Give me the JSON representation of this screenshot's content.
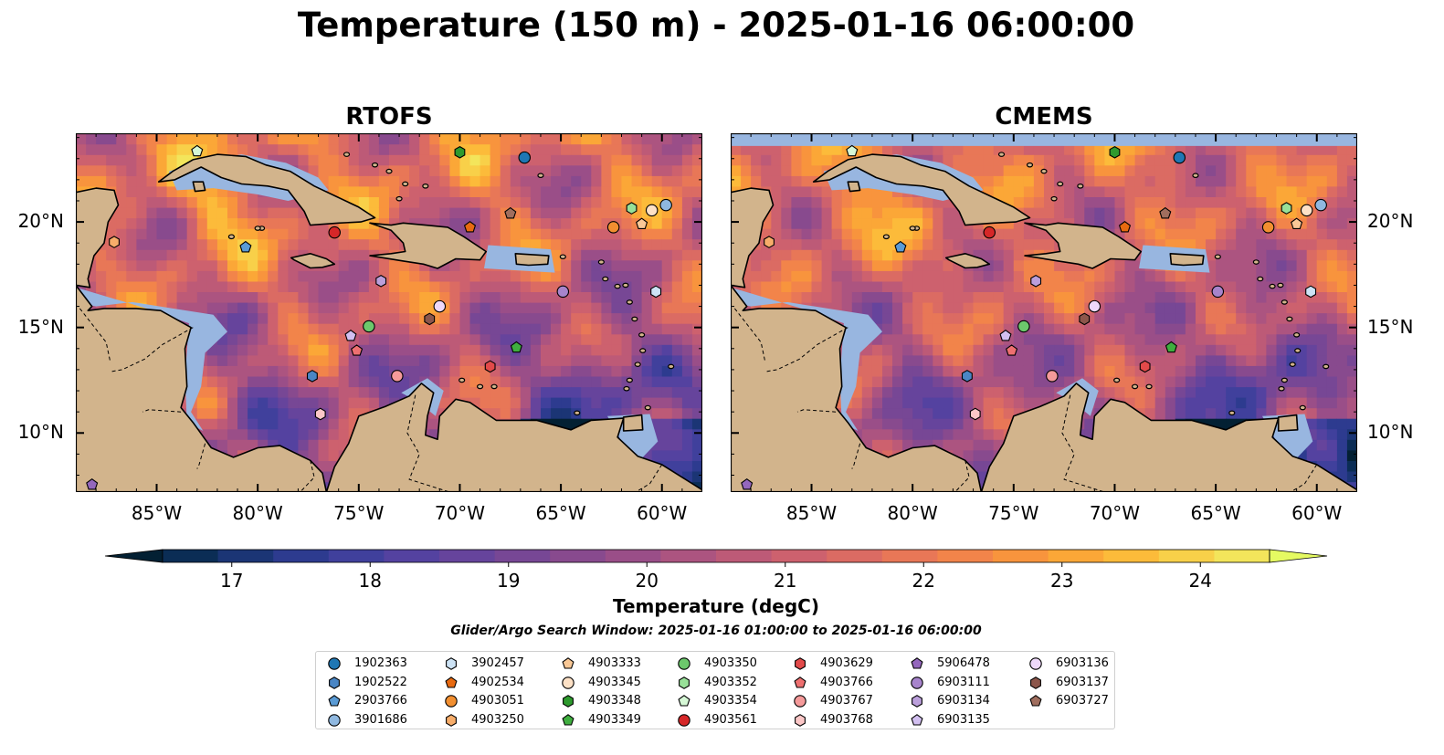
{
  "title": "Temperature (150 m) - 2025-01-16 06:00:00",
  "panels": [
    {
      "name": "RTOFS"
    },
    {
      "name": "CMEMS"
    }
  ],
  "map": {
    "lon_range": [
      -89,
      -58
    ],
    "lat_range": [
      7.2,
      24.2
    ],
    "lon_ticks": [
      "85°W",
      "80°W",
      "75°W",
      "70°W",
      "65°W",
      "60°W"
    ],
    "lat_ticks": [
      "20°N",
      "15°N",
      "10°N"
    ],
    "colors": {
      "land": "#d2b48c",
      "shelf": "#98b6e0",
      "deep": "#04253a"
    }
  },
  "colorbar": {
    "label": "Temperature (degC)",
    "ticks": [
      "17",
      "18",
      "19",
      "20",
      "21",
      "22",
      "23",
      "24"
    ],
    "range": [
      16.5,
      24.5
    ],
    "colors": [
      "#0b2d55",
      "#1b3575",
      "#2d3b8f",
      "#40409c",
      "#5442a0",
      "#66449c",
      "#774795",
      "#884a8e",
      "#9a4e88",
      "#ac5480",
      "#bd5a77",
      "#cd616e",
      "#db6b63",
      "#e87757",
      "#f2844a",
      "#f8943d",
      "#fba737",
      "#fcbb3a",
      "#f8d049",
      "#f3e55b"
    ],
    "under_color": "#032033",
    "over_color": "#e5fa62"
  },
  "search_window": "Glider/Argo Search Window: 2025-01-16 01:00:00 to 2025-01-16 06:00:00",
  "floats": [
    {
      "id": "1902363",
      "marker": "circle",
      "color": "#1f77b4",
      "lon": -66.8,
      "lat": 23.05
    },
    {
      "id": "1902522",
      "marker": "hexagon",
      "color": "#4a86c5",
      "lon": -77.3,
      "lat": 12.7
    },
    {
      "id": "2903766",
      "marker": "pentagon",
      "color": "#5a9bd5",
      "lon": -80.6,
      "lat": 18.8
    },
    {
      "id": "3901686",
      "marker": "circle",
      "color": "#8fb8e0",
      "lon": -59.8,
      "lat": 20.8
    },
    {
      "id": "3902457",
      "marker": "hexagon",
      "color": "#cde3f5",
      "lon": -60.3,
      "lat": 16.7
    },
    {
      "id": "4902534",
      "marker": "pentagon",
      "color": "#e86a10",
      "lon": -69.5,
      "lat": 19.75
    },
    {
      "id": "4903051",
      "marker": "circle",
      "color": "#f28f30",
      "lon": -62.4,
      "lat": 19.75
    },
    {
      "id": "4903250",
      "marker": "hexagon",
      "color": "#f7ad6a",
      "lon": -87.1,
      "lat": 19.05
    },
    {
      "id": "4903333",
      "marker": "pentagon",
      "color": "#f9c896",
      "lon": -61.0,
      "lat": 19.9
    },
    {
      "id": "4903345",
      "marker": "circle",
      "color": "#fde1c6",
      "lon": -60.5,
      "lat": 20.55
    },
    {
      "id": "4903348",
      "marker": "hexagon",
      "color": "#2e9a2e",
      "lon": -70.0,
      "lat": 23.3
    },
    {
      "id": "4903349",
      "marker": "pentagon",
      "color": "#3fae3f",
      "lon": -67.2,
      "lat": 14.05
    },
    {
      "id": "4903350",
      "marker": "circle",
      "color": "#6cc86c",
      "lon": -74.5,
      "lat": 15.05
    },
    {
      "id": "4903352",
      "marker": "hexagon",
      "color": "#98e098",
      "lon": -61.5,
      "lat": 20.65
    },
    {
      "id": "4903354",
      "marker": "pentagon",
      "color": "#d6f8d6",
      "lon": -83.0,
      "lat": 23.35
    },
    {
      "id": "4903561",
      "marker": "circle",
      "color": "#d62728",
      "lon": -76.2,
      "lat": 19.5
    },
    {
      "id": "4903629",
      "marker": "hexagon",
      "color": "#e24a4a",
      "lon": -68.5,
      "lat": 13.15
    },
    {
      "id": "4903766",
      "marker": "pentagon",
      "color": "#ee7070",
      "lon": -75.1,
      "lat": 13.9
    },
    {
      "id": "4903767",
      "marker": "circle",
      "color": "#f59a9a",
      "lon": -73.1,
      "lat": 12.7
    },
    {
      "id": "4903768",
      "marker": "hexagon",
      "color": "#fbc7c7",
      "lon": -76.9,
      "lat": 10.9
    },
    {
      "id": "5906478",
      "marker": "pentagon",
      "color": "#9467bd",
      "lon": -88.2,
      "lat": 7.55
    },
    {
      "id": "6903111",
      "marker": "circle",
      "color": "#a784cc",
      "lon": -64.9,
      "lat": 16.7
    },
    {
      "id": "6903134",
      "marker": "hexagon",
      "color": "#bb9fdb",
      "lon": -73.9,
      "lat": 17.2
    },
    {
      "id": "6903135",
      "marker": "pentagon",
      "color": "#d2bff0",
      "lon": -75.4,
      "lat": 14.6
    },
    {
      "id": "6903136",
      "marker": "circle",
      "color": "#eed8fa",
      "lon": -71.0,
      "lat": 16.0
    },
    {
      "id": "6903137",
      "marker": "hexagon",
      "color": "#8c564b",
      "lon": -71.5,
      "lat": 15.4
    },
    {
      "id": "6903727",
      "marker": "pentagon",
      "color": "#a06e5e",
      "lon": -67.5,
      "lat": 20.4
    }
  ]
}
